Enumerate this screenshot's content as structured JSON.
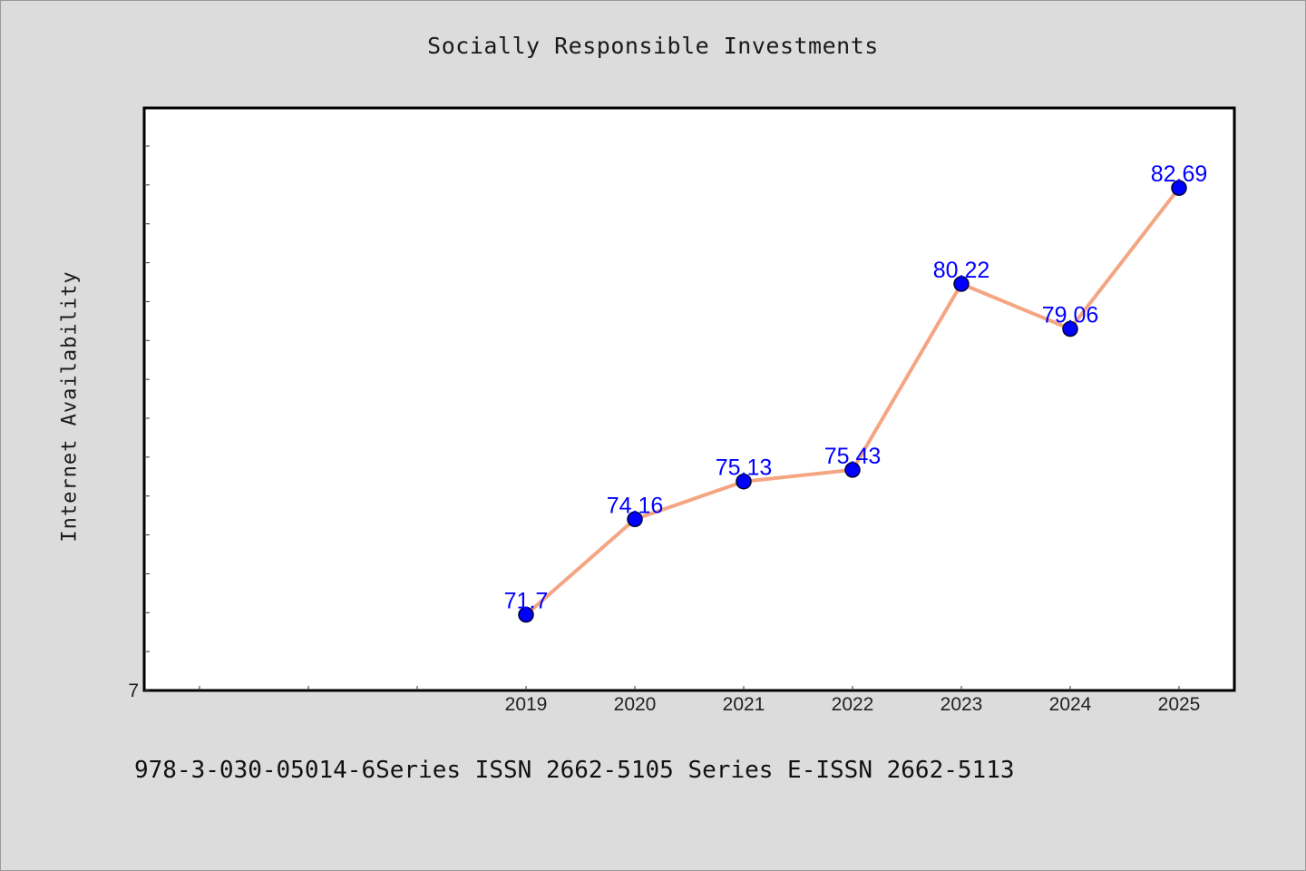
{
  "chart_data": {
    "type": "line",
    "title": "Socially Responsible Investments",
    "xlabel": "",
    "ylabel": "Internet Availability",
    "categories": [
      "2019",
      "2020",
      "2021",
      "2022",
      "2023",
      "2024",
      "2025"
    ],
    "series": [
      {
        "values": [
          71.7,
          74.16,
          75.13,
          75.43,
          80.22,
          79.06,
          82.69
        ],
        "data_labels": [
          "71.7",
          "74.16",
          "75.13",
          "75.43",
          "80.22",
          "79.06",
          "82.69"
        ],
        "line_color": "#f4a582",
        "marker_color": "#0000ff"
      }
    ],
    "x_axis": {
      "leading_slots": 3
    },
    "y_axis": {
      "min_label": "7"
    },
    "ylim": [
      69.75,
      84.75
    ],
    "grid": false,
    "legend": "none",
    "label_color": "#0000ff"
  },
  "footer": {
    "text": "978-3-030-05014-6Series ISSN 2662-5105 Series E-ISSN 2662-5113"
  }
}
